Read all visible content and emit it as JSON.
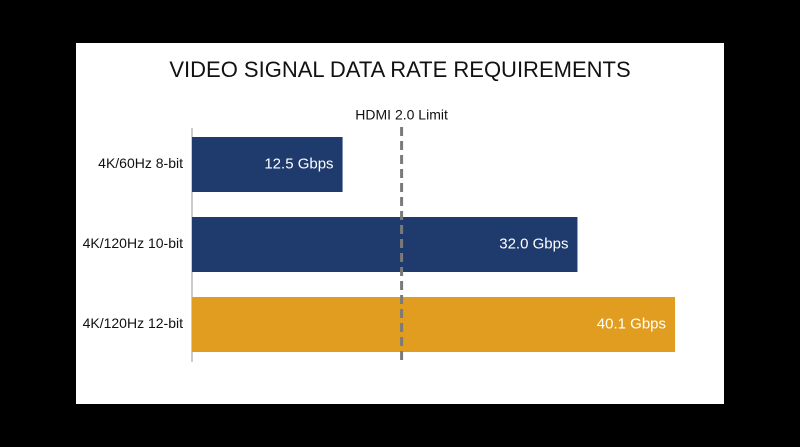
{
  "chart_data": {
    "type": "bar",
    "orientation": "horizontal",
    "title": "VIDEO SIGNAL DATA RATE REQUIREMENTS",
    "categories": [
      "4K/60Hz 8-bit",
      "4K/120Hz 10-bit",
      "4K/120Hz 12-bit"
    ],
    "values": [
      12.5,
      32.0,
      40.1
    ],
    "value_labels": [
      "12.5 Gbps",
      "32.0 Gbps",
      "40.1 Gbps"
    ],
    "colors": [
      "#1f3a6c",
      "#1f3a6c",
      "#e19d1f"
    ],
    "xlim": [
      0,
      44
    ],
    "reference_line": {
      "label": "HDMI 2.0 Limit",
      "value": 17.4
    }
  }
}
